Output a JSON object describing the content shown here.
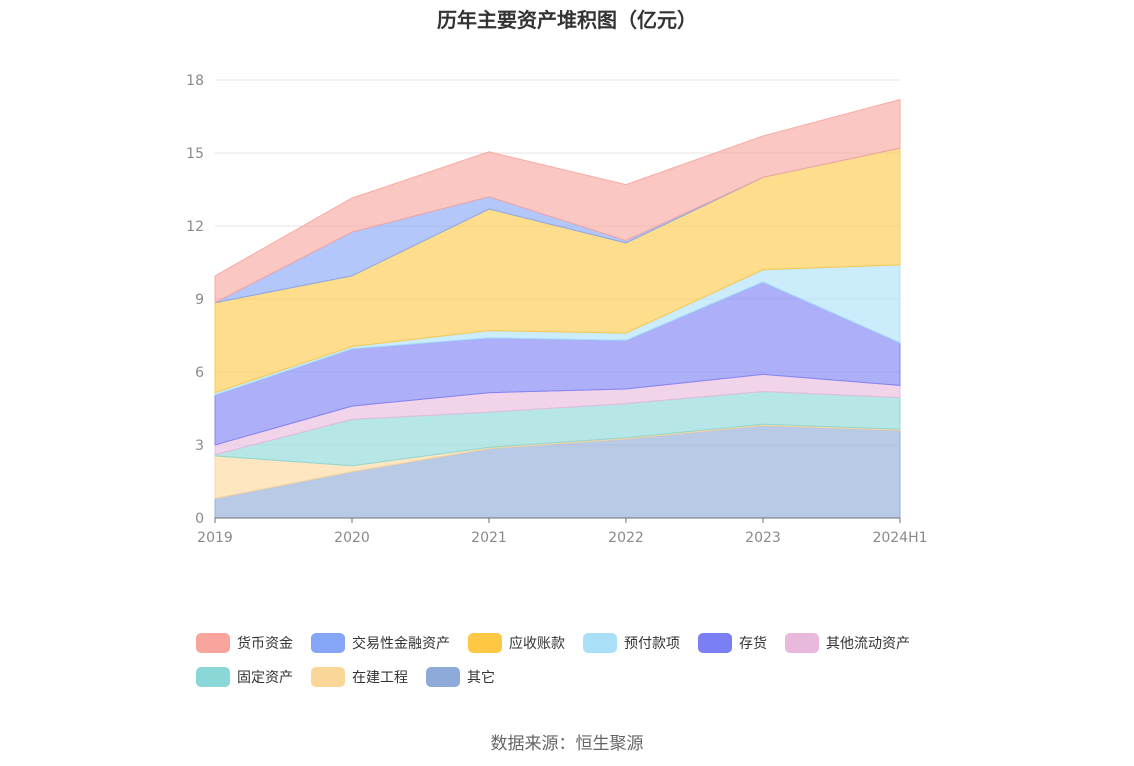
{
  "chart_data": {
    "type": "area",
    "stacked": true,
    "title": "历年主要资产堆积图（亿元）",
    "source": "数据来源：恒生聚源",
    "categories": [
      "2019",
      "2020",
      "2021",
      "2022",
      "2023",
      "2024H1"
    ],
    "ylim": [
      0,
      18
    ],
    "yticks": [
      0,
      3,
      6,
      9,
      12,
      15,
      18
    ],
    "grid": true,
    "legend_position": "bottom",
    "series": [
      {
        "name": "其它",
        "color": "#8eaad9",
        "values": [
          0.8,
          1.9,
          2.85,
          3.25,
          3.8,
          3.6
        ]
      },
      {
        "name": "在建工程",
        "color": "#fbd699",
        "values": [
          1.75,
          0.25,
          0.05,
          0.05,
          0.05,
          0.05
        ]
      },
      {
        "name": "固定资产",
        "color": "#8ad7d7",
        "values": [
          0.05,
          1.9,
          1.45,
          1.4,
          1.35,
          1.3
        ]
      },
      {
        "name": "其他流动资产",
        "color": "#e8b9dd",
        "values": [
          0.4,
          0.55,
          0.8,
          0.6,
          0.7,
          0.5
        ]
      },
      {
        "name": "存货",
        "color": "#7b7ff4",
        "values": [
          2.05,
          2.35,
          2.25,
          2.0,
          3.8,
          1.75
        ]
      },
      {
        "name": "预付款项",
        "color": "#a9e0f8",
        "values": [
          0.1,
          0.1,
          0.3,
          0.3,
          0.5,
          3.2
        ]
      },
      {
        "name": "应收账款",
        "color": "#fec845",
        "values": [
          3.7,
          2.9,
          5.0,
          3.7,
          3.8,
          4.8
        ]
      },
      {
        "name": "交易性金融资产",
        "color": "#85a5f7",
        "values": [
          0.0,
          1.8,
          0.5,
          0.1,
          0.0,
          0.0
        ]
      },
      {
        "name": "货币资金",
        "color": "#f8a59d",
        "values": [
          1.1,
          1.4,
          1.85,
          2.3,
          1.7,
          2.0
        ]
      }
    ],
    "legend_order": [
      "货币资金",
      "交易性金融资产",
      "应收账款",
      "预付款项",
      "存货",
      "其他流动资产",
      "固定资产",
      "在建工程",
      "其它"
    ]
  }
}
